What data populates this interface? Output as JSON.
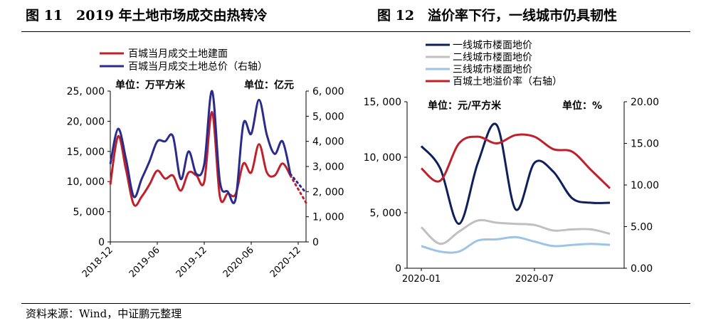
{
  "header": {
    "left_title": "图 11　2019 年土地市场成交由热转冷",
    "right_title": "图 12　溢价率下行，一线城市仍具韧性"
  },
  "footer": {
    "source": "资料来源：Wind，中证鹏元整理"
  },
  "chart_data": [
    {
      "type": "line",
      "unit_left": "单位：万平方米",
      "unit_right": "单位：亿元",
      "x_ticks": [
        "2018-12",
        "2019-06",
        "2019-12",
        "2020-06",
        "2020-12"
      ],
      "x_tick_index": [
        0,
        6,
        12,
        18,
        24
      ],
      "ylim_left": [
        0,
        25000
      ],
      "ylim_right": [
        0,
        6000
      ],
      "yticks_left": [
        "0",
        "5, 000",
        "10, 000",
        "15, 000",
        "20, 000",
        "25, 000"
      ],
      "yticks_right": [
        "0",
        "1, 000",
        "2, 000",
        "3, 000",
        "4, 000",
        "5, 000",
        "6, 000"
      ],
      "legend": [
        "百城当月成交土地建面",
        "百城当月成交土地总价（右轴）"
      ],
      "colors": {
        "area": "#c0202a",
        "price": "#2a2b8c"
      },
      "series": [
        {
          "name": "百城当月成交土地建面",
          "axis": "left",
          "x": [
            0,
            1,
            2,
            3,
            4,
            5,
            6,
            7,
            8,
            9,
            10,
            11,
            12,
            13,
            14,
            15,
            16,
            17,
            18,
            19,
            20,
            21,
            22,
            23
          ],
          "values": [
            9500,
            17500,
            12000,
            6200,
            7500,
            9500,
            11800,
            10500,
            11000,
            8500,
            11500,
            11000,
            10000,
            21500,
            7500,
            8000,
            7900,
            13000,
            11500,
            16200,
            11500,
            11000,
            13000,
            11000
          ],
          "projection": {
            "x": [
              23,
              25
            ],
            "values": [
              11000,
              6500
            ]
          }
        },
        {
          "name": "百城当月成交土地总价（右轴）",
          "axis": "right",
          "x": [
            0,
            1,
            2,
            3,
            4,
            5,
            6,
            7,
            8,
            9,
            10,
            11,
            12,
            13,
            14,
            15,
            16,
            17,
            18,
            19,
            20,
            21,
            22,
            23
          ],
          "values": [
            3100,
            4500,
            3300,
            1800,
            2500,
            3200,
            4000,
            4000,
            4200,
            2500,
            3600,
            2700,
            3100,
            6000,
            2400,
            2000,
            1700,
            4700,
            4300,
            5650,
            4250,
            3500,
            4000,
            2700
          ],
          "projection": {
            "x": [
              23,
              25
            ],
            "values": [
              2700,
              1950
            ]
          }
        }
      ]
    },
    {
      "type": "line",
      "unit_left": "单位：元/平方米",
      "unit_right": "单位：%",
      "x_ticks": [
        "2020-01",
        "2020-07"
      ],
      "x_tick_index": [
        0,
        6
      ],
      "ylim_left": [
        0,
        15000
      ],
      "ylim_right": [
        0,
        20
      ],
      "yticks_left": [
        "0",
        "5, 000",
        "10, 000",
        "15, 000"
      ],
      "yticks_right": [
        "0.00",
        "5.00",
        "10.00",
        "15.00",
        "20.00"
      ],
      "legend": [
        "一线城市楼面地价",
        "二线城市楼面地价",
        "三线城市楼面地价",
        "百城土地溢价率（右轴）"
      ],
      "colors": {
        "tier1": "#0f1f5c",
        "tier2": "#c0c0c0",
        "tier3": "#9dc3e6",
        "premium": "#c0202a"
      },
      "series": [
        {
          "name": "一线城市楼面地价",
          "axis": "left",
          "x": [
            0,
            1,
            2,
            3,
            4,
            5,
            6,
            7,
            8,
            9,
            10
          ],
          "values": [
            11000,
            9000,
            4000,
            9500,
            12900,
            5300,
            9500,
            8700,
            6300,
            5900,
            5900
          ]
        },
        {
          "name": "二线城市楼面地价",
          "axis": "left",
          "x": [
            0,
            1,
            2,
            3,
            4,
            5,
            6,
            7,
            8,
            9,
            10
          ],
          "values": [
            3700,
            2200,
            3300,
            4300,
            4100,
            4000,
            3900,
            3400,
            3500,
            3500,
            3100
          ]
        },
        {
          "name": "三线城市楼面地价",
          "axis": "left",
          "x": [
            0,
            1,
            2,
            3,
            4,
            5,
            6,
            7,
            8,
            9,
            10
          ],
          "values": [
            2000,
            1500,
            1500,
            2500,
            2600,
            2800,
            2400,
            2000,
            2100,
            2200,
            2100
          ]
        },
        {
          "name": "百城土地溢价率（右轴）",
          "axis": "right",
          "x": [
            0,
            1,
            2,
            3,
            4,
            5,
            6,
            7,
            8,
            9,
            10
          ],
          "values": [
            12,
            10.5,
            15,
            15.8,
            15,
            16,
            15.8,
            14.3,
            14,
            11.8,
            9.6
          ]
        }
      ]
    }
  ]
}
